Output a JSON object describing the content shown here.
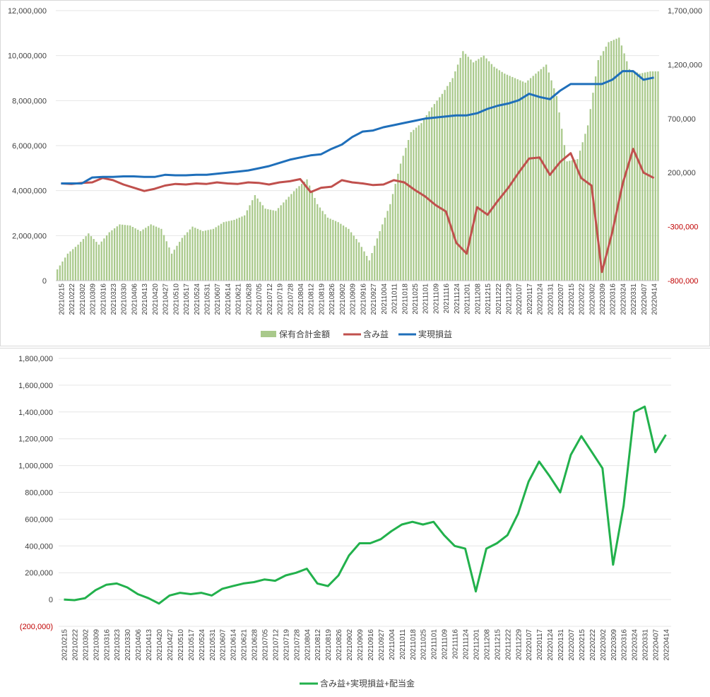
{
  "chart_data": [
    {
      "type": "bar+line",
      "title": "",
      "left_axis": {
        "ticks": [
          "0",
          "2,000,000",
          "4,000,000",
          "6,000,000",
          "8,000,000",
          "10,000,000",
          "12,000,000"
        ],
        "range": [
          0,
          12000000
        ]
      },
      "right_axis": {
        "ticks": [
          "-800,000",
          "-300,000",
          "200,000",
          "700,000",
          "1,200,000",
          "1,700,000"
        ],
        "range": [
          -800000,
          1700000
        ],
        "negative_color": "#c00000"
      },
      "x_tick_labels": [
        "20210215",
        "20210222",
        "20210302",
        "20210309",
        "20210316",
        "20210323",
        "20210330",
        "20210406",
        "20210413",
        "20210420",
        "20210427",
        "20210510",
        "20210517",
        "20210524",
        "20210531",
        "20210607",
        "20210614",
        "20210621",
        "20210628",
        "20210705",
        "20210712",
        "20210719",
        "20210728",
        "20210804",
        "20210812",
        "20210819",
        "20210826",
        "20210902",
        "20210909",
        "20210916",
        "20210927",
        "20211004",
        "20211011",
        "20211018",
        "20211025",
        "20211101",
        "20211109",
        "20211116",
        "20211124",
        "20211201",
        "20211208",
        "20211215",
        "20211222",
        "20211229",
        "20220107",
        "20220117",
        "20220124",
        "20220131",
        "20220207",
        "20220215",
        "20220222",
        "20220302",
        "20220309",
        "20220316",
        "20220324",
        "20220331",
        "20220407",
        "20220414"
      ],
      "series": [
        {
          "name": "保有合計金額",
          "kind": "bar",
          "axis": "left",
          "color": "#a9c98b",
          "values": [
            500000,
            1200000,
            1600000,
            2100000,
            1600000,
            2150000,
            2500000,
            2450000,
            2200000,
            2500000,
            2300000,
            1200000,
            1900000,
            2400000,
            2200000,
            2300000,
            2600000,
            2700000,
            2900000,
            3800000,
            3200000,
            3100000,
            3600000,
            4100000,
            4500000,
            3400000,
            2800000,
            2600000,
            2300000,
            1700000,
            900000,
            2200000,
            3400000,
            5200000,
            6600000,
            7000000,
            7700000,
            8300000,
            9000000,
            10200000,
            9700000,
            10000000,
            9500000,
            9200000,
            9000000,
            8800000,
            9200000,
            9600000,
            8200000,
            5300000,
            5400000,
            6900000,
            9800000,
            10600000,
            10800000,
            9400000,
            9200000,
            9300000
          ]
        },
        {
          "name": "含み益",
          "kind": "line",
          "axis": "right",
          "color": "#c0504d",
          "values": [
            100000,
            95000,
            105000,
            110000,
            150000,
            130000,
            90000,
            60000,
            30000,
            50000,
            80000,
            95000,
            90000,
            100000,
            95000,
            110000,
            100000,
            95000,
            110000,
            105000,
            90000,
            110000,
            120000,
            140000,
            20000,
            60000,
            70000,
            130000,
            110000,
            100000,
            85000,
            90000,
            130000,
            110000,
            40000,
            -20000,
            -100000,
            -160000,
            -450000,
            -550000,
            -120000,
            -190000,
            -60000,
            60000,
            200000,
            330000,
            340000,
            180000,
            300000,
            380000,
            150000,
            80000,
            -720000,
            -350000,
            100000,
            420000,
            200000,
            150000
          ]
        },
        {
          "name": "実現損益",
          "kind": "line",
          "axis": "right",
          "color": "#1f6fba",
          "values": [
            100000,
            100000,
            100000,
            155000,
            160000,
            160000,
            165000,
            165000,
            160000,
            160000,
            180000,
            175000,
            175000,
            180000,
            180000,
            190000,
            200000,
            210000,
            220000,
            240000,
            260000,
            290000,
            320000,
            340000,
            360000,
            370000,
            420000,
            460000,
            530000,
            580000,
            590000,
            620000,
            640000,
            660000,
            680000,
            700000,
            710000,
            720000,
            730000,
            730000,
            750000,
            790000,
            820000,
            840000,
            870000,
            930000,
            900000,
            880000,
            960000,
            1020000,
            1020000,
            1020000,
            1020000,
            1060000,
            1140000,
            1140000,
            1060000,
            1080000
          ]
        }
      ],
      "legend": [
        "保有合計金額",
        "含み益",
        "実現損益"
      ],
      "legend_position": "bottom"
    },
    {
      "type": "line",
      "title": "",
      "y_axis": {
        "ticks": [
          "(200,000)",
          "0",
          "200,000",
          "400,000",
          "600,000",
          "800,000",
          "1,000,000",
          "1,200,000",
          "1,400,000",
          "1,600,000",
          "1,800,000"
        ],
        "range": [
          -200000,
          1800000
        ],
        "negative_color": "#c00000"
      },
      "x_tick_labels": [
        "20210215",
        "20210222",
        "20210302",
        "20210309",
        "20210316",
        "20210323",
        "20210330",
        "20210406",
        "20210413",
        "20210420",
        "20210427",
        "20210510",
        "20210517",
        "20210524",
        "20210531",
        "20210607",
        "20210614",
        "20210621",
        "20210628",
        "20210705",
        "20210712",
        "20210719",
        "20210728",
        "20210804",
        "20210812",
        "20210819",
        "20210826",
        "20210902",
        "20210909",
        "20210916",
        "20210927",
        "20211004",
        "20211011",
        "20211018",
        "20211025",
        "20211101",
        "20211109",
        "20211116",
        "20211124",
        "20211201",
        "20211208",
        "20211215",
        "20211222",
        "20211229",
        "20220107",
        "20220117",
        "20220124",
        "20220131",
        "20220207",
        "20220215",
        "20220222",
        "20220302",
        "20220309",
        "20220316",
        "20220324",
        "20220331",
        "20220407",
        "20220414"
      ],
      "series": [
        {
          "name": "含み益+実現損益+配当金",
          "color": "#22b14c",
          "values": [
            0,
            -5000,
            10000,
            70000,
            110000,
            120000,
            90000,
            40000,
            10000,
            -30000,
            30000,
            50000,
            40000,
            50000,
            30000,
            80000,
            100000,
            120000,
            130000,
            150000,
            140000,
            180000,
            200000,
            230000,
            120000,
            100000,
            180000,
            330000,
            420000,
            420000,
            450000,
            510000,
            560000,
            580000,
            560000,
            580000,
            480000,
            400000,
            380000,
            60000,
            380000,
            420000,
            480000,
            640000,
            880000,
            1030000,
            920000,
            800000,
            1080000,
            1220000,
            1100000,
            980000,
            260000,
            700000,
            1400000,
            1440000,
            1100000,
            1230000
          ]
        }
      ],
      "legend": [
        "含み益+実現損益+配当金"
      ],
      "legend_position": "bottom"
    }
  ]
}
